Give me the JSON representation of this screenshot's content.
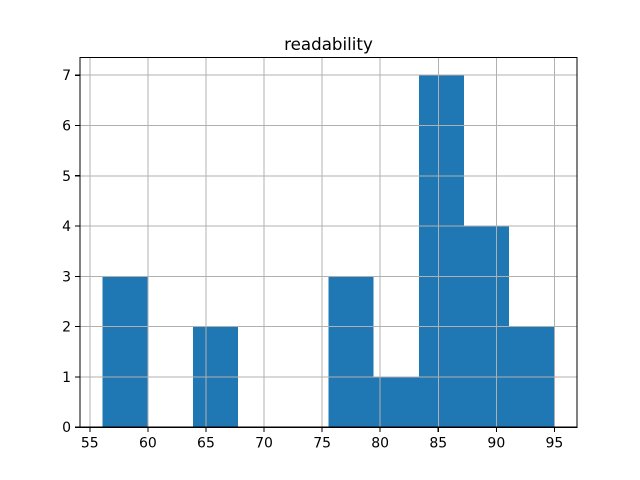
{
  "chart_data": {
    "type": "bar",
    "subtype": "histogram",
    "title": "readability",
    "xlabel": "",
    "ylabel": "",
    "bin_edges": [
      56.1,
      59.99,
      63.88,
      67.77,
      71.66,
      75.55,
      79.44,
      83.33,
      87.22,
      91.11,
      95.0
    ],
    "counts": [
      3,
      0,
      2,
      0,
      0,
      3,
      1,
      7,
      4,
      2
    ],
    "xticks": [
      55,
      60,
      65,
      70,
      75,
      80,
      85,
      90,
      95
    ],
    "yticks": [
      0,
      1,
      2,
      3,
      4,
      5,
      6,
      7
    ],
    "xlim": [
      54.155,
      96.945
    ],
    "ylim": [
      0,
      7.35
    ],
    "grid": true,
    "legend": false,
    "colors": {
      "bar": "#1f77b4",
      "grid": "#b0b0b0",
      "spine": "#000000",
      "text": "#000000",
      "background": "#ffffff"
    }
  }
}
